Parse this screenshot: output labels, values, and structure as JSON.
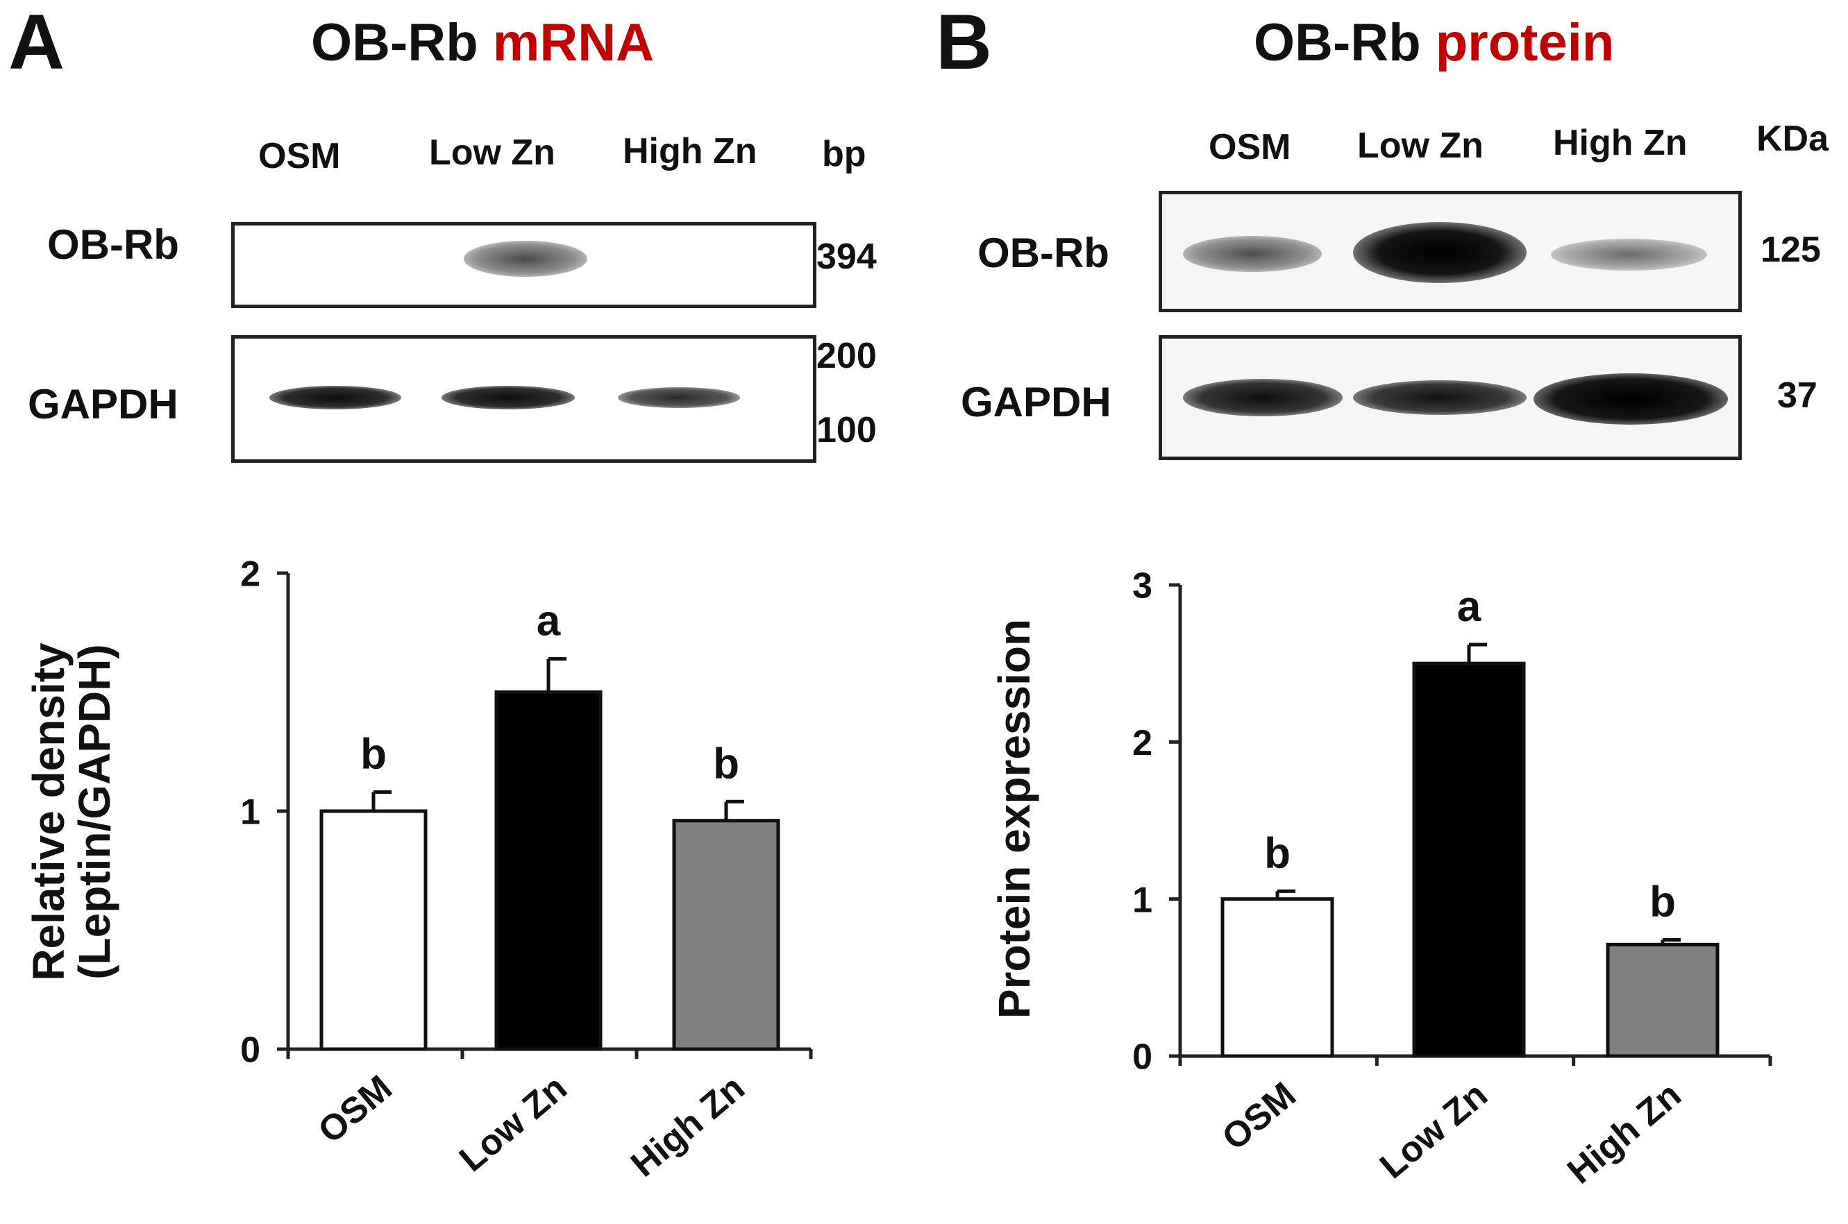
{
  "panel_a": {
    "letter": "A",
    "title_main": "OB-Rb",
    "title_accent": "mRNA",
    "lanes": [
      "OSM",
      "Low Zn",
      "High Zn"
    ],
    "unit_label": "bp",
    "rows": [
      "OB-Rb",
      "GAPDH"
    ],
    "markers": [
      "394",
      "200",
      "100"
    ]
  },
  "panel_b": {
    "letter": "B",
    "title_main": "OB-Rb",
    "title_accent": "protein",
    "lanes": [
      "OSM",
      "Low Zn",
      "High Zn"
    ],
    "unit_label": "KDa",
    "rows": [
      "OB-Rb",
      "GAPDH"
    ],
    "markers": [
      "125",
      "37"
    ]
  },
  "colors": {
    "accent": "#c40000",
    "bar_osm": "#ffffff",
    "bar_low": "#000000",
    "bar_high": "#808080"
  },
  "chart_data": [
    {
      "type": "bar",
      "title": "",
      "categories": [
        "OSM",
        "Low Zn",
        "High Zn"
      ],
      "values": [
        1.0,
        1.5,
        0.96
      ],
      "errors": [
        0.08,
        0.14,
        0.08
      ],
      "letters": [
        "b",
        "a",
        "b"
      ],
      "colors": [
        "#ffffff",
        "#000000",
        "#808080"
      ],
      "xlabel": "",
      "ylabel_lines": [
        "Relative density",
        "(Leptin/GAPDH)"
      ],
      "ylim": [
        0,
        2
      ],
      "yticks": [
        "0",
        "1",
        "2"
      ],
      "grid": false
    },
    {
      "type": "bar",
      "title": "",
      "categories": [
        "OSM",
        "Low Zn",
        "High Zn"
      ],
      "values": [
        1.0,
        2.5,
        0.71
      ],
      "errors": [
        0.05,
        0.12,
        0.03
      ],
      "letters": [
        "b",
        "a",
        "b"
      ],
      "colors": [
        "#ffffff",
        "#000000",
        "#808080"
      ],
      "xlabel": "",
      "ylabel_lines": [
        "Protein expression"
      ],
      "ylim": [
        0,
        3
      ],
      "yticks": [
        "0",
        "1",
        "2",
        "3"
      ],
      "grid": false
    }
  ]
}
